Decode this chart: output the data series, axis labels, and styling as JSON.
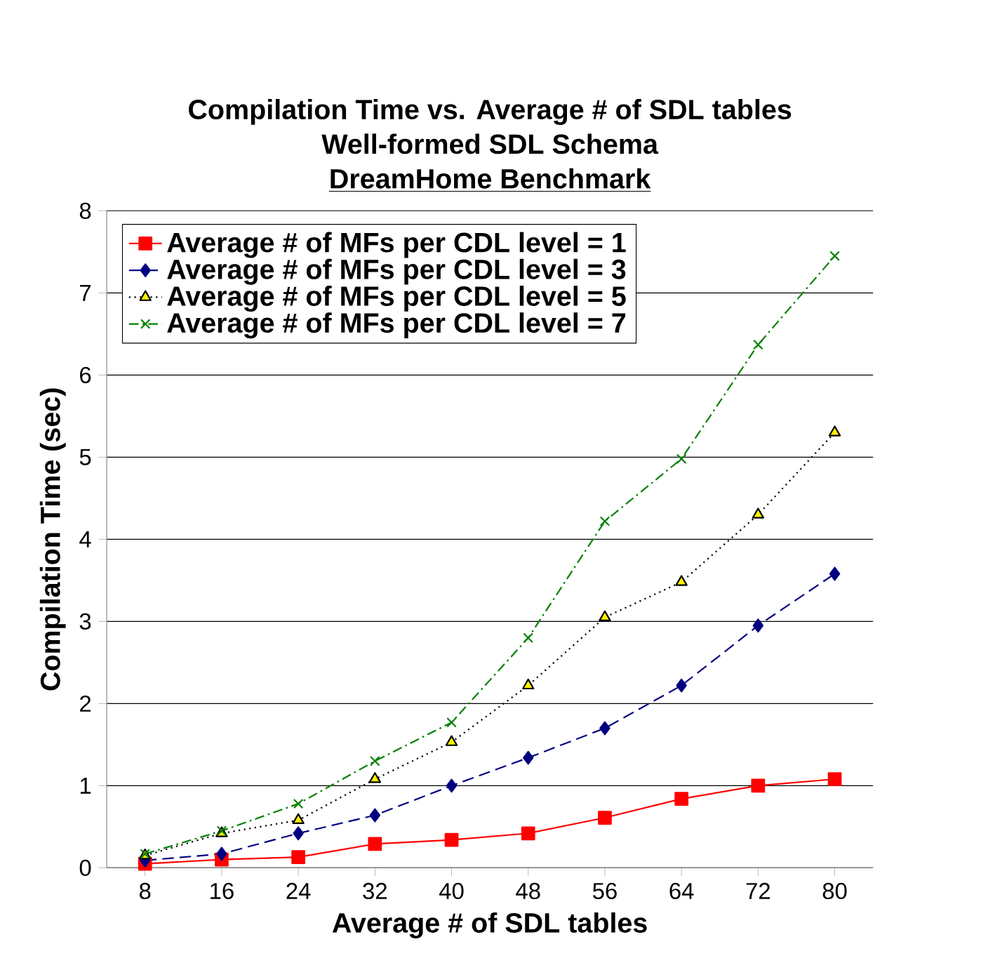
{
  "chart_data": {
    "type": "line",
    "title": "Compilation Time vs. Average # of SDL tables",
    "subtitle": [
      "Well-formed SDL Schema",
      "DreamHome Benchmark"
    ],
    "xlabel": "Average # of SDL tables",
    "ylabel": "Compilation Time (sec)",
    "categories": [
      "8",
      "16",
      "24",
      "32",
      "40",
      "48",
      "56",
      "64",
      "72",
      "80"
    ],
    "ylim": [
      0,
      8
    ],
    "yticks": [
      0,
      1,
      2,
      3,
      4,
      5,
      6,
      7,
      8
    ],
    "grid": "y",
    "legend": "top left",
    "series": [
      {
        "name": "Average # of MFs per CDL level = 1",
        "color": "#ff0000",
        "marker": "square",
        "line_style": "solid",
        "values": [
          0.05,
          0.1,
          0.13,
          0.29,
          0.34,
          0.42,
          0.61,
          0.84,
          1.0,
          1.08
        ]
      },
      {
        "name": "Average # of MFs per CDL level = 3",
        "color": "#000080",
        "marker": "diamond",
        "line_style": "dashed",
        "values": [
          0.09,
          0.17,
          0.42,
          0.64,
          1.0,
          1.34,
          1.7,
          2.22,
          2.95,
          3.58
        ]
      },
      {
        "name": "Average # of MFs per CDL level = 5",
        "color": "#000000",
        "marker": "triangle",
        "line_style": "dotted",
        "values": [
          0.15,
          0.42,
          0.58,
          1.08,
          1.53,
          2.22,
          3.05,
          3.48,
          4.3,
          5.3
        ]
      },
      {
        "name": "Average # of MFs per CDL level = 7",
        "color": "#008000",
        "marker": "cross",
        "line_style": "dashdotted",
        "values": [
          0.17,
          0.45,
          0.78,
          1.3,
          1.77,
          2.8,
          4.22,
          4.98,
          6.37,
          7.45
        ]
      }
    ]
  }
}
